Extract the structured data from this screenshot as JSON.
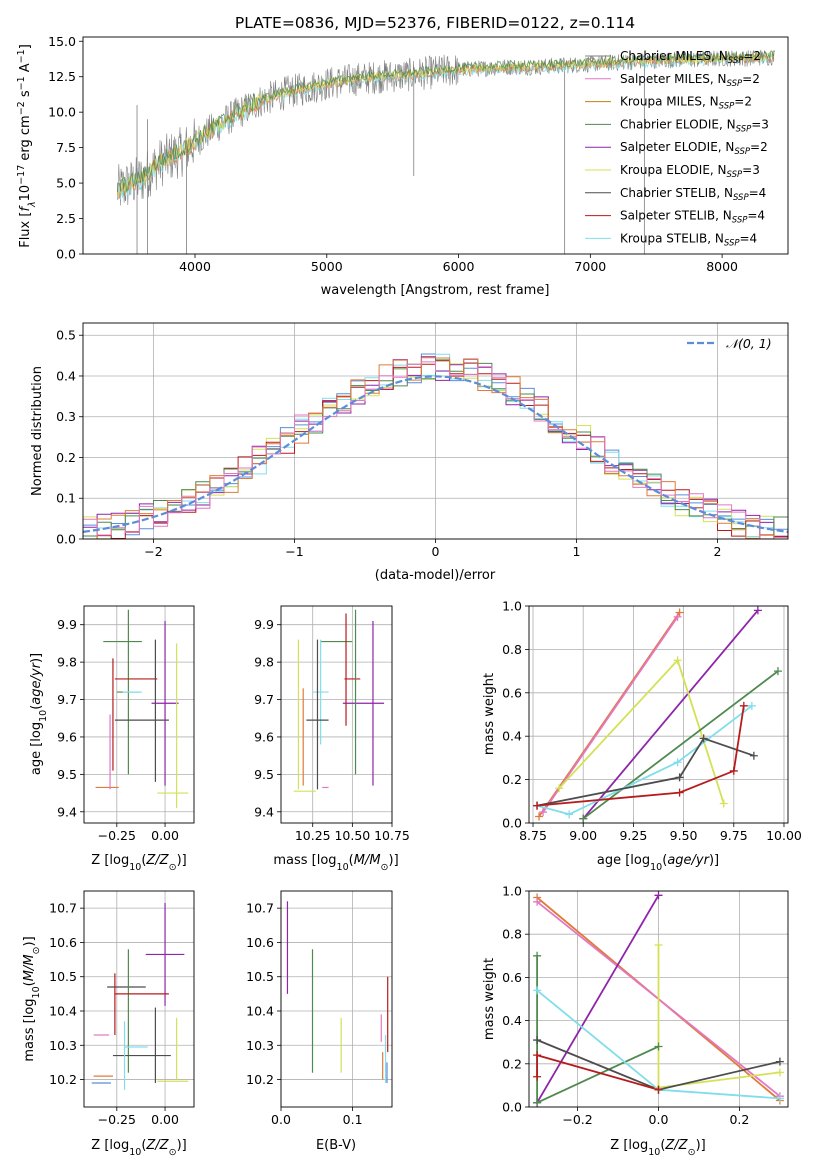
{
  "title": "PLATE=0836, MJD=52376, FIBERID=0122, z=0.114",
  "colors": {
    "chabrier_miles": "#7f7f7f",
    "salpeter_miles": "#e377c2",
    "kroupa_miles": "#b8860b",
    "chabrier_elodie": "#4f8a4f",
    "salpeter_elodie": "#8e24aa",
    "kroupa_elodie": "#d4e157",
    "chabrier_stelib": "#4d4d4d",
    "salpeter_stelib": "#b71c1c",
    "kroupa_stelib": "#80deea",
    "orange": "#e07b39",
    "gaussian": "#5b8ddb"
  },
  "chart_data": [
    {
      "id": "spectrum",
      "type": "line",
      "xlabel": "wavelength [Angstrom, rest frame]",
      "ylabel": "Flux [f_λ 10^-17 erg cm^-2 s^-1 A^-1]",
      "xlim": [
        3150,
        8500
      ],
      "ylim": [
        0,
        15.3
      ],
      "xticks": [
        4000,
        5000,
        6000,
        7000,
        8000
      ],
      "yticks": [
        0.0,
        2.5,
        5.0,
        7.5,
        10.0,
        12.5,
        15.0
      ],
      "grid": false,
      "legend_position": "top-right",
      "x": [
        3410,
        3500,
        3600,
        3700,
        3800,
        3900,
        4000,
        4100,
        4200,
        4300,
        4400,
        4500,
        4600,
        4700,
        4800,
        4900,
        5000,
        5200,
        5400,
        5600,
        5800,
        6000,
        6200,
        6400,
        6600,
        6800,
        7000,
        7200,
        7400,
        7600,
        7800,
        8000,
        8200,
        8400
      ],
      "flux": [
        4.5,
        4.9,
        5.3,
        6.2,
        6.8,
        7.2,
        7.9,
        8.6,
        9.2,
        9.8,
        10.3,
        10.8,
        11.1,
        11.4,
        11.6,
        11.8,
        12.0,
        12.3,
        12.5,
        12.6,
        12.8,
        13.0,
        13.1,
        13.2,
        13.2,
        13.3,
        13.4,
        13.5,
        13.6,
        13.7,
        13.7,
        13.8,
        13.8,
        13.9
      ],
      "legend": [
        {
          "name": "Chabrier MILES, N",
          "sub": "SSP",
          "suffix": "=2",
          "color_key": "chabrier_miles"
        },
        {
          "name": "Salpeter MILES, N",
          "sub": "SSP",
          "suffix": "=2",
          "color_key": "salpeter_miles"
        },
        {
          "name": "Kroupa MILES, N",
          "sub": "SSP",
          "suffix": "=2",
          "color_key": "kroupa_miles"
        },
        {
          "name": "Chabrier ELODIE, N",
          "sub": "SSP",
          "suffix": "=3",
          "color_key": "chabrier_elodie"
        },
        {
          "name": "Salpeter ELODIE, N",
          "sub": "SSP",
          "suffix": "=2",
          "color_key": "salpeter_elodie"
        },
        {
          "name": "Kroupa ELODIE, N",
          "sub": "SSP",
          "suffix": "=3",
          "color_key": "kroupa_elodie"
        },
        {
          "name": "Chabrier STELIB, N",
          "sub": "SSP",
          "suffix": "=4",
          "color_key": "chabrier_stelib"
        },
        {
          "name": "Salpeter STELIB, N",
          "sub": "SSP",
          "suffix": "=4",
          "color_key": "salpeter_stelib"
        },
        {
          "name": "Kroupa STELIB, N",
          "sub": "SSP",
          "suffix": "=4",
          "color_key": "kroupa_stelib"
        }
      ]
    },
    {
      "id": "residuals",
      "type": "bar",
      "xlabel": "(data-model)/error",
      "ylabel": "Normed distribution",
      "xlim": [
        -2.5,
        2.5
      ],
      "ylim": [
        0,
        0.53
      ],
      "xticks": [
        -2,
        -1,
        0,
        1,
        2
      ],
      "yticks": [
        0.0,
        0.1,
        0.2,
        0.3,
        0.4,
        0.5
      ],
      "grid": true,
      "legend_position": "top-right",
      "gaussian_label": "𝒩(0, 1)",
      "bin_width": 0.1,
      "bins_from": -2.5,
      "series_color_keys": [
        "gaussian",
        "kroupa_stelib",
        "kroupa_elodie",
        "salpeter_elodie",
        "salpeter_stelib",
        "chabrier_elodie",
        "orange",
        "salpeter_miles"
      ]
    },
    {
      "id": "age_vs_z",
      "type": "scatter",
      "xlabel": "Z [log10(Z/Z⊙)]",
      "ylabel": "age [log10(age/yr)]",
      "xlim": [
        -0.42,
        0.15
      ],
      "ylim": [
        9.37,
        9.95
      ],
      "xticks": [
        -0.25,
        0.0
      ],
      "xticklabels": [
        "−0.25",
        "0.00"
      ],
      "yticks": [
        9.4,
        9.5,
        9.6,
        9.7,
        9.8,
        9.9
      ],
      "grid": true,
      "points": [
        {
          "x": -0.22,
          "y": 9.855,
          "xerr": 0.1,
          "yerr": 0.0,
          "color_key": "chabrier_elodie"
        },
        {
          "x": -0.19,
          "y": 9.72,
          "xerr": 0.06,
          "yerr": 0.22,
          "color_key": "chabrier_elodie"
        },
        {
          "x": -0.17,
          "y": 9.72,
          "xerr": 0.05,
          "yerr": 0.0,
          "color_key": "kroupa_stelib"
        },
        {
          "x": -0.15,
          "y": 9.755,
          "xerr": 0.11,
          "yerr": 0.0,
          "color_key": "salpeter_stelib"
        },
        {
          "x": -0.05,
          "y": 9.67,
          "xerr": 0.0,
          "yerr": 0.19,
          "color_key": "chabrier_stelib"
        },
        {
          "x": -0.12,
          "y": 9.645,
          "xerr": 0.14,
          "yerr": 0.0,
          "color_key": "chabrier_stelib"
        },
        {
          "x": 0.0,
          "y": 9.69,
          "xerr": 0.07,
          "yerr": 0.22,
          "color_key": "salpeter_elodie"
        },
        {
          "x": 0.04,
          "y": 9.45,
          "xerr": 0.08,
          "yerr": 0.0,
          "color_key": "kroupa_elodie"
        },
        {
          "x": 0.06,
          "y": 9.63,
          "xerr": 0.0,
          "yerr": 0.22,
          "color_key": "kroupa_elodie"
        },
        {
          "x": -0.27,
          "y": 9.66,
          "xerr": 0.0,
          "yerr": 0.15,
          "color_key": "salpeter_stelib"
        },
        {
          "x": -0.3,
          "y": 9.465,
          "xerr": 0.06,
          "yerr": 0.0,
          "color_key": "orange"
        },
        {
          "x": -0.285,
          "y": 9.56,
          "xerr": 0.0,
          "yerr": 0.1,
          "color_key": "salpeter_miles"
        }
      ]
    },
    {
      "id": "age_vs_mass",
      "type": "scatter",
      "xlabel": "mass [log10(M/M⊙)]",
      "ylabel": "",
      "xlim": [
        10.05,
        10.75
      ],
      "ylim": [
        9.37,
        9.95
      ],
      "xticks": [
        10.25,
        10.5,
        10.75
      ],
      "xticklabels": [
        "10.25",
        "10.50",
        "10.75"
      ],
      "yticks": [
        9.4,
        9.5,
        9.6,
        9.7,
        9.8,
        9.9
      ],
      "grid": true,
      "points": [
        {
          "x": 10.4,
          "y": 9.855,
          "xerr": 0.1,
          "yerr": 0.0,
          "color_key": "chabrier_elodie"
        },
        {
          "x": 10.3,
          "y": 9.72,
          "xerr": 0.05,
          "yerr": 0.14,
          "color_key": "kroupa_stelib"
        },
        {
          "x": 10.5,
          "y": 9.755,
          "xerr": 0.05,
          "yerr": 0.0,
          "color_key": "salpeter_stelib"
        },
        {
          "x": 10.28,
          "y": 9.645,
          "xerr": 0.07,
          "yerr": 0.0,
          "color_key": "chabrier_stelib"
        },
        {
          "x": 10.28,
          "y": 9.66,
          "xerr": 0.0,
          "yerr": 0.2,
          "color_key": "chabrier_stelib"
        },
        {
          "x": 10.57,
          "y": 9.69,
          "xerr": 0.13,
          "yerr": 0.0,
          "color_key": "salpeter_elodie"
        },
        {
          "x": 10.63,
          "y": 9.69,
          "xerr": 0.0,
          "yerr": 0.22,
          "color_key": "salpeter_elodie"
        },
        {
          "x": 10.46,
          "y": 9.78,
          "xerr": 0.0,
          "yerr": 0.15,
          "color_key": "salpeter_stelib"
        },
        {
          "x": 10.52,
          "y": 9.72,
          "xerr": 0.0,
          "yerr": 0.22,
          "color_key": "chabrier_elodie"
        },
        {
          "x": 10.2,
          "y": 9.455,
          "xerr": 0.07,
          "yerr": 0.0,
          "color_key": "kroupa_elodie"
        },
        {
          "x": 10.16,
          "y": 9.66,
          "xerr": 0.0,
          "yerr": 0.2,
          "color_key": "kroupa_elodie"
        },
        {
          "x": 10.19,
          "y": 9.6,
          "xerr": 0.0,
          "yerr": 0.13,
          "color_key": "orange"
        },
        {
          "x": 10.33,
          "y": 9.465,
          "xerr": 0.02,
          "yerr": 0.0,
          "color_key": "salpeter_miles"
        }
      ]
    },
    {
      "id": "weight_vs_age",
      "type": "line",
      "xlabel": "age [log10(age/yr)]",
      "ylabel": "mass weight",
      "xlim": [
        8.73,
        10.02
      ],
      "ylim": [
        0,
        1.0
      ],
      "xticks": [
        8.75,
        9.0,
        9.25,
        9.5,
        9.75,
        10.0
      ],
      "xticklabels": [
        "8.75",
        "9.00",
        "9.25",
        "9.50",
        "9.75",
        "10.00"
      ],
      "yticks": [
        0.0,
        0.2,
        0.4,
        0.6,
        0.8,
        1.0
      ],
      "grid": true,
      "series": [
        {
          "color_key": "orange",
          "x": [
            8.78,
            9.48
          ],
          "y": [
            0.03,
            0.97
          ]
        },
        {
          "color_key": "salpeter_miles",
          "x": [
            8.8,
            9.47
          ],
          "y": [
            0.05,
            0.95
          ]
        },
        {
          "color_key": "salpeter_elodie",
          "x": [
            9.0,
            9.87
          ],
          "y": [
            0.02,
            0.98
          ]
        },
        {
          "color_key": "kroupa_elodie",
          "x": [
            8.88,
            9.47,
            9.7
          ],
          "y": [
            0.16,
            0.75,
            0.09
          ]
        },
        {
          "color_key": "chabrier_elodie",
          "x": [
            9.0,
            9.97
          ],
          "y": [
            0.02,
            0.7
          ]
        },
        {
          "color_key": "kroupa_stelib",
          "x": [
            8.77,
            8.93,
            9.47,
            9.84
          ],
          "y": [
            0.08,
            0.04,
            0.28,
            0.54
          ]
        },
        {
          "color_key": "chabrier_stelib",
          "x": [
            8.77,
            9.48,
            9.6,
            9.85
          ],
          "y": [
            0.08,
            0.21,
            0.39,
            0.31
          ]
        },
        {
          "color_key": "salpeter_stelib",
          "x": [
            8.77,
            9.48,
            9.75,
            9.8
          ],
          "y": [
            0.08,
            0.14,
            0.24,
            0.54
          ]
        }
      ]
    },
    {
      "id": "mass_vs_z",
      "type": "scatter",
      "xlabel": "Z [log10(Z/Z⊙)]",
      "ylabel": "mass [log10(M/M⊙)]",
      "xlim": [
        -0.42,
        0.15
      ],
      "ylim": [
        10.12,
        10.75
      ],
      "xticks": [
        -0.25,
        0.0
      ],
      "xticklabels": [
        "−0.25",
        "0.00"
      ],
      "yticks": [
        10.2,
        10.3,
        10.4,
        10.5,
        10.6,
        10.7
      ],
      "grid": true,
      "points": [
        {
          "x": 0.0,
          "y": 10.565,
          "xerr": 0.1,
          "yerr": 0.15,
          "color_key": "salpeter_elodie"
        },
        {
          "x": -0.2,
          "y": 10.47,
          "xerr": 0.1,
          "yerr": 0.0,
          "color_key": "chabrier_stelib"
        },
        {
          "x": -0.19,
          "y": 10.4,
          "xerr": 0.0,
          "yerr": 0.18,
          "color_key": "chabrier_elodie"
        },
        {
          "x": -0.12,
          "y": 10.45,
          "xerr": 0.14,
          "yerr": 0.0,
          "color_key": "salpeter_stelib"
        },
        {
          "x": -0.26,
          "y": 10.42,
          "xerr": 0.0,
          "yerr": 0.09,
          "color_key": "salpeter_stelib"
        },
        {
          "x": -0.15,
          "y": 10.295,
          "xerr": 0.06,
          "yerr": 0.0,
          "color_key": "kroupa_stelib"
        },
        {
          "x": -0.12,
          "y": 10.27,
          "xerr": 0.15,
          "yerr": 0.0,
          "color_key": "chabrier_stelib"
        },
        {
          "x": -0.05,
          "y": 10.3,
          "xerr": 0.0,
          "yerr": 0.11,
          "color_key": "chabrier_stelib"
        },
        {
          "x": 0.04,
          "y": 10.195,
          "xerr": 0.08,
          "yerr": 0.0,
          "color_key": "kroupa_elodie"
        },
        {
          "x": 0.06,
          "y": 10.29,
          "xerr": 0.0,
          "yerr": 0.09,
          "color_key": "kroupa_elodie"
        },
        {
          "x": -0.33,
          "y": 10.33,
          "xerr": 0.04,
          "yerr": 0.0,
          "color_key": "salpeter_miles"
        },
        {
          "x": -0.32,
          "y": 10.21,
          "xerr": 0.05,
          "yerr": 0.0,
          "color_key": "orange"
        },
        {
          "x": -0.33,
          "y": 10.19,
          "xerr": 0.05,
          "yerr": 0.0,
          "color_key": "gaussian"
        },
        {
          "x": -0.21,
          "y": 10.27,
          "xerr": 0.0,
          "yerr": 0.1,
          "color_key": "kroupa_stelib"
        }
      ]
    },
    {
      "id": "mass_vs_ebv",
      "type": "scatter",
      "xlabel": "E(B-V)",
      "ylabel": "",
      "xlim": [
        0.0,
        0.155
      ],
      "ylim": [
        10.12,
        10.75
      ],
      "xticks": [
        0.0,
        0.1
      ],
      "xticklabels": [
        "0.0",
        "0.1"
      ],
      "yticks": [
        10.2,
        10.3,
        10.4,
        10.5,
        10.6,
        10.7
      ],
      "grid": true,
      "points": [
        {
          "x": 0.009,
          "y": 10.585,
          "xerr": 0.0,
          "yerr": 0.135,
          "color_key": "salpeter_elodie"
        },
        {
          "x": 0.044,
          "y": 10.4,
          "xerr": 0.0,
          "yerr": 0.18,
          "color_key": "chabrier_elodie"
        },
        {
          "x": 0.084,
          "y": 10.3,
          "xerr": 0.0,
          "yerr": 0.08,
          "color_key": "kroupa_elodie"
        },
        {
          "x": 0.14,
          "y": 10.35,
          "xerr": 0.0,
          "yerr": 0.04,
          "color_key": "salpeter_miles"
        },
        {
          "x": 0.142,
          "y": 10.24,
          "xerr": 0.0,
          "yerr": 0.04,
          "color_key": "orange"
        },
        {
          "x": 0.146,
          "y": 10.26,
          "xerr": 0.0,
          "yerr": 0.07,
          "color_key": "kroupa_stelib"
        },
        {
          "x": 0.149,
          "y": 10.39,
          "xerr": 0.0,
          "yerr": 0.11,
          "color_key": "salpeter_stelib"
        },
        {
          "x": 0.148,
          "y": 10.22,
          "xerr": 0.0,
          "yerr": 0.03,
          "color_key": "gaussian"
        }
      ]
    },
    {
      "id": "weight_vs_z",
      "type": "line",
      "xlabel": "Z [log10(Z/Z⊙)]",
      "ylabel": "mass weight",
      "xlim": [
        -0.32,
        0.32
      ],
      "ylim": [
        0,
        1.0
      ],
      "xticks": [
        -0.2,
        0.0,
        0.2
      ],
      "xticklabels": [
        "−0.2",
        "0.0",
        "0.2"
      ],
      "yticks": [
        0.0,
        0.2,
        0.4,
        0.6,
        0.8,
        1.0
      ],
      "grid": true,
      "series": [
        {
          "color_key": "orange",
          "x": [
            -0.3,
            0.3
          ],
          "y": [
            0.97,
            0.03
          ]
        },
        {
          "color_key": "salpeter_miles",
          "x": [
            -0.3,
            0.3
          ],
          "y": [
            0.95,
            0.05
          ]
        },
        {
          "color_key": "salpeter_elodie",
          "x": [
            -0.3,
            0.0
          ],
          "y": [
            0.02,
            0.98
          ]
        },
        {
          "color_key": "kroupa_elodie",
          "x": [
            0.0,
            0.0,
            0.3
          ],
          "y": [
            0.75,
            0.09,
            0.16
          ]
        },
        {
          "color_key": "chabrier_elodie",
          "x": [
            -0.3,
            -0.3,
            0.0
          ],
          "y": [
            0.7,
            0.02,
            0.28
          ]
        },
        {
          "color_key": "kroupa_stelib",
          "x": [
            -0.3,
            0.0,
            0.3
          ],
          "y": [
            0.54,
            0.08,
            0.04
          ]
        },
        {
          "color_key": "chabrier_stelib",
          "x": [
            -0.3,
            0.0,
            0.3
          ],
          "y": [
            0.31,
            0.08,
            0.21
          ]
        },
        {
          "color_key": "salpeter_stelib",
          "x": [
            -0.3,
            -0.3,
            0.0
          ],
          "y": [
            0.14,
            0.24,
            0.08
          ]
        }
      ]
    }
  ]
}
